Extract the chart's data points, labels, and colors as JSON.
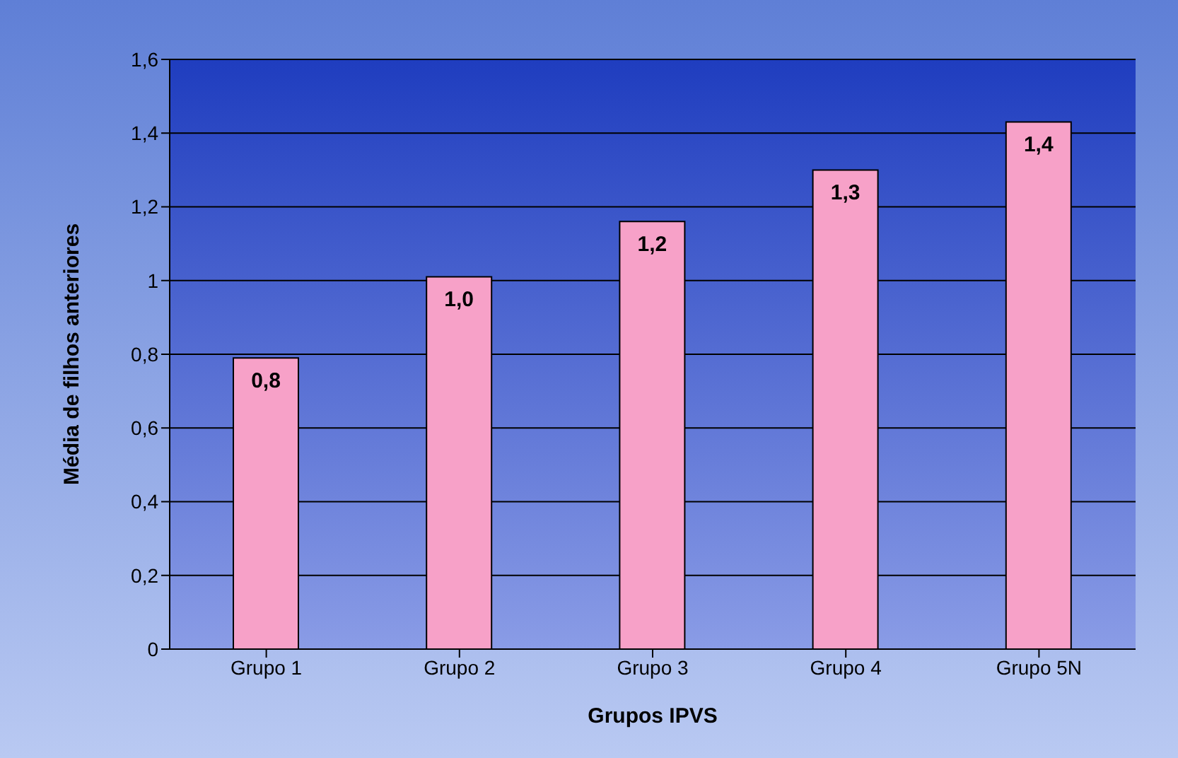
{
  "chart_data": {
    "type": "bar",
    "xlabel": "Grupos IPVS",
    "ylabel": "Média de filhos anteriores",
    "categories": [
      "Grupo 1",
      "Grupo 2",
      "Grupo 3",
      "Grupo 4",
      "Grupo 5N"
    ],
    "values": [
      0.79,
      1.01,
      1.16,
      1.3,
      1.43
    ],
    "value_labels": [
      "0,8",
      "1,0",
      "1,2",
      "1,3",
      "1,4"
    ],
    "color": "#f7a1c8",
    "ylim": [
      0,
      1.6
    ],
    "yticks": [
      0,
      {
        "value": 0.2,
        "label": "0,2"
      },
      {
        "value": 0.4,
        "label": "0,4"
      },
      {
        "value": 0.6,
        "label": "0,6"
      },
      {
        "value": 0.8,
        "label": "0,8"
      },
      1,
      {
        "value": 1.2,
        "label": "1,2"
      },
      {
        "value": 1.4,
        "label": "1,4"
      },
      {
        "value": 1.6,
        "label": "1,6"
      }
    ],
    "grid": "y",
    "legend": false
  }
}
